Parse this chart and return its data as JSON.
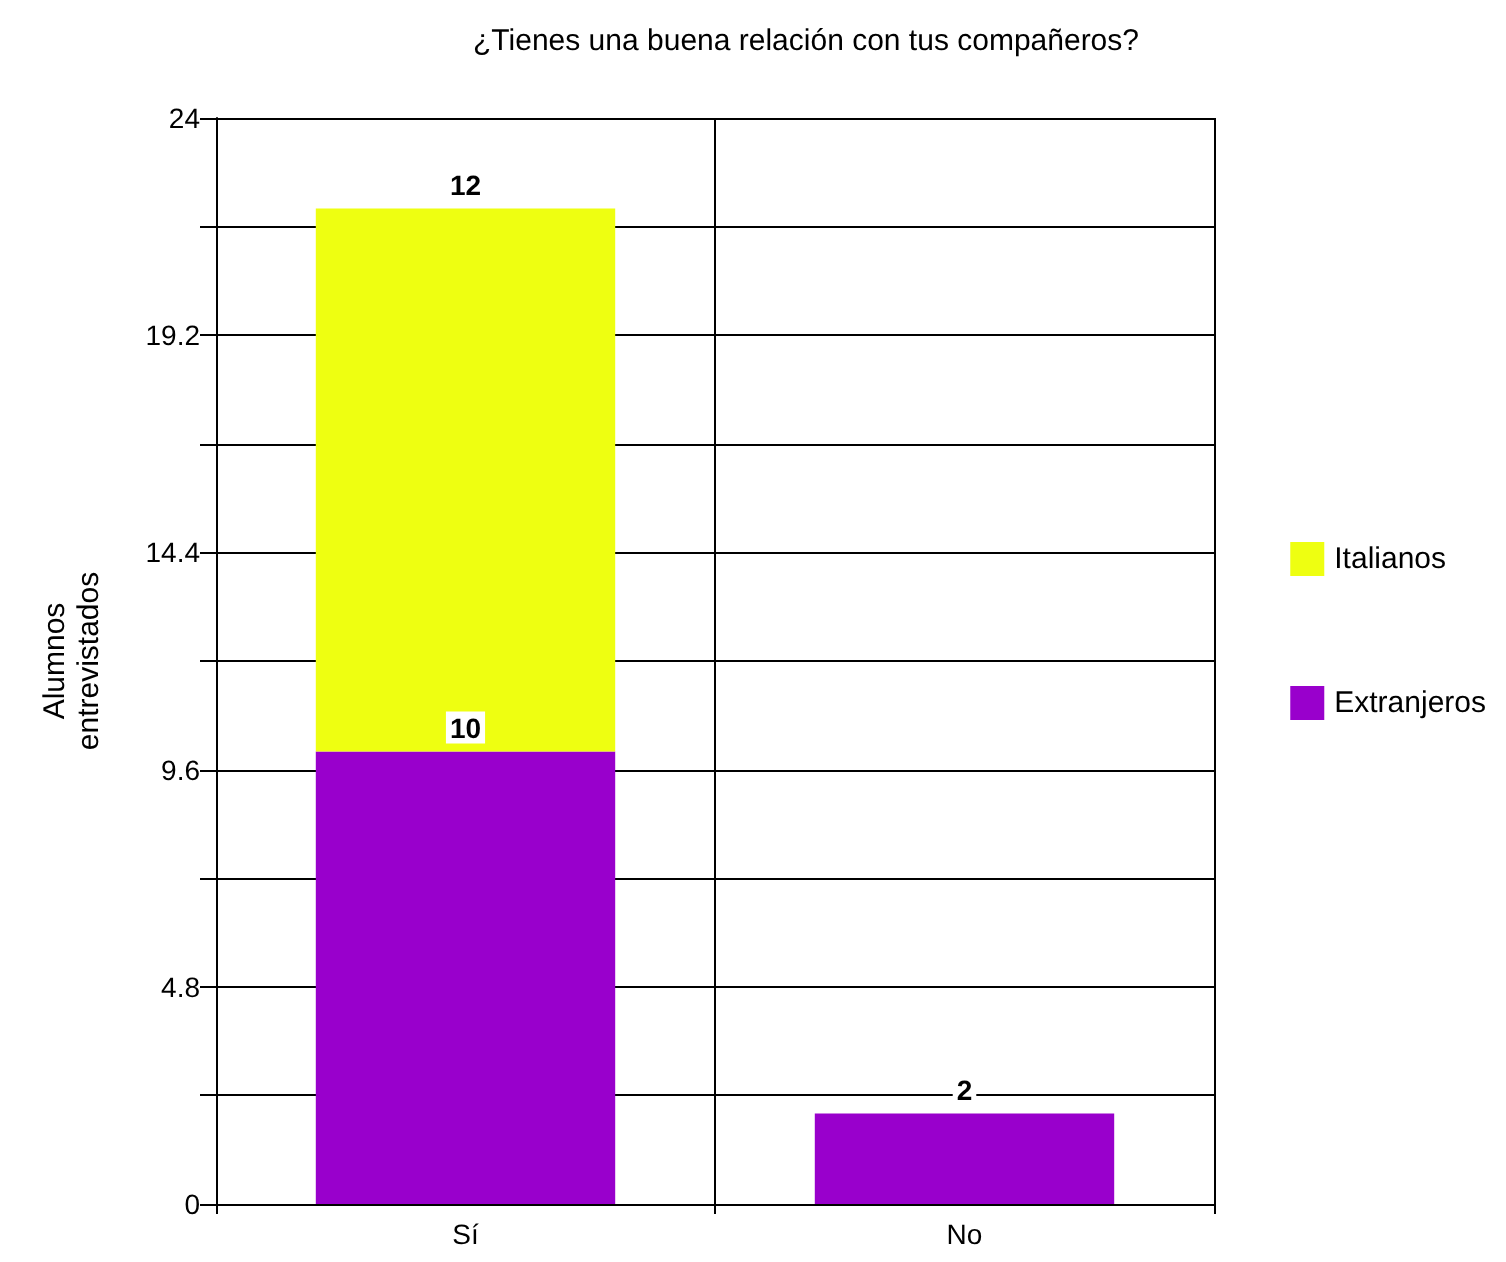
{
  "chart_data": {
    "type": "bar",
    "title": "¿Tienes una buena relación con tus compañeros?",
    "ylabel": "Alumnos entrevistados",
    "categories": [
      "Sí",
      "No"
    ],
    "stacked": true,
    "series": [
      {
        "name": "Extranjeros",
        "color": "#9900cc",
        "values": [
          10,
          2
        ]
      },
      {
        "name": "Italianos",
        "color": "#eeff11",
        "values": [
          12,
          null
        ]
      }
    ],
    "ylim": [
      0,
      24
    ],
    "yticks": [
      0,
      {
        "value": 2.4,
        "label": null
      },
      4.8,
      {
        "value": 7.2,
        "label": null
      },
      9.6,
      {
        "value": 12,
        "label": null
      },
      14.4,
      {
        "value": 16.8,
        "label": null
      },
      19.2,
      {
        "value": 21.6,
        "label": null
      },
      24
    ],
    "grid": true,
    "legend": "right",
    "data_labels": true
  }
}
